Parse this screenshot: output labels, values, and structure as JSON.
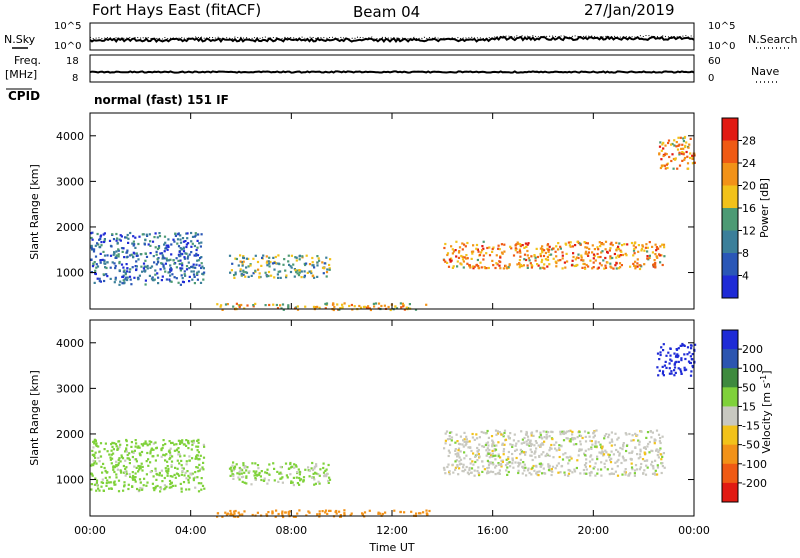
{
  "header": {
    "station": "Fort Hays East (fitACF)",
    "beam": "Beam 04",
    "date": "27/Jan/2019"
  },
  "aux": {
    "nsky_label": "N.Sky",
    "nsearch_label": "N.Search",
    "freq_label": "Freq.",
    "freq_unit": "[MHz]",
    "nave_label": "Nave",
    "cpid_label": "CPID",
    "cpid_value": "normal (fast) 151 IF",
    "noise_left_ticks": [
      "10^5",
      "10^0"
    ],
    "noise_right_ticks": [
      "10^5",
      "10^0"
    ],
    "freq_left_ticks": [
      "18",
      "8"
    ],
    "nave_right_ticks": [
      "60",
      "0"
    ]
  },
  "chart_data": [
    {
      "type": "heatmap",
      "name": "power",
      "ylabel": "Slant Range [km]",
      "xlabel": "",
      "x_ticks": [
        "00:00",
        "04:00",
        "08:00",
        "12:00",
        "16:00",
        "20:00",
        "00:00"
      ],
      "y_ticks": [
        1000,
        2000,
        3000,
        4000
      ],
      "ylim": [
        200,
        4500
      ],
      "xlim_hours": [
        0,
        24
      ],
      "colorbar": {
        "label": "Power [dB]",
        "ticks": [
          "4",
          "8",
          "12",
          "16",
          "20",
          "24",
          "28"
        ],
        "colors": [
          "#1f2bd6",
          "#2a57b7",
          "#3b7f9a",
          "#4c9a74",
          "#f2c21a",
          "#f29218",
          "#ef5a14",
          "#e11a12"
        ]
      },
      "regions": [
        {
          "t0": 0.0,
          "t1": 4.5,
          "r0": 750,
          "r1": 1900,
          "value": 8
        },
        {
          "t0": 5.5,
          "t1": 9.5,
          "r0": 900,
          "r1": 1400,
          "value": 14
        },
        {
          "t0": 5.0,
          "t1": 13.5,
          "r0": 200,
          "r1": 350,
          "value": 20
        },
        {
          "t0": 14.0,
          "t1": 22.8,
          "r0": 1100,
          "r1": 1700,
          "value": 22
        },
        {
          "t0": 22.5,
          "t1": 24.0,
          "r0": 3300,
          "r1": 4000,
          "value": 22
        }
      ]
    },
    {
      "type": "heatmap",
      "name": "velocity",
      "ylabel": "Slant Range [km]",
      "xlabel": "Time UT",
      "x_ticks": [
        "00:00",
        "04:00",
        "08:00",
        "12:00",
        "16:00",
        "20:00",
        "00:00"
      ],
      "y_ticks": [
        1000,
        2000,
        3000,
        4000
      ],
      "ylim": [
        200,
        4500
      ],
      "xlim_hours": [
        0,
        24
      ],
      "colorbar": {
        "label": "Velocity [m s^-1]",
        "ticks": [
          "200",
          "100",
          "50",
          "15",
          "-15",
          "-50",
          "-100",
          "-200"
        ],
        "colors": [
          "#1f2bd6",
          "#2c55b0",
          "#3e8a3e",
          "#7fd13a",
          "#c8c8c0",
          "#f2c21a",
          "#f29218",
          "#ef5a14",
          "#e11a12"
        ]
      },
      "regions": [
        {
          "t0": 0.0,
          "t1": 4.5,
          "r0": 750,
          "r1": 1900,
          "value": 30
        },
        {
          "t0": 5.5,
          "t1": 9.5,
          "r0": 900,
          "r1": 1400,
          "value": 25
        },
        {
          "t0": 5.0,
          "t1": 13.5,
          "r0": 200,
          "r1": 350,
          "value": -80
        },
        {
          "t0": 14.0,
          "t1": 22.8,
          "r0": 1100,
          "r1": 2100,
          "value": 0
        },
        {
          "t0": 22.5,
          "t1": 24.0,
          "r0": 3300,
          "r1": 4000,
          "value": 220
        }
      ]
    }
  ]
}
